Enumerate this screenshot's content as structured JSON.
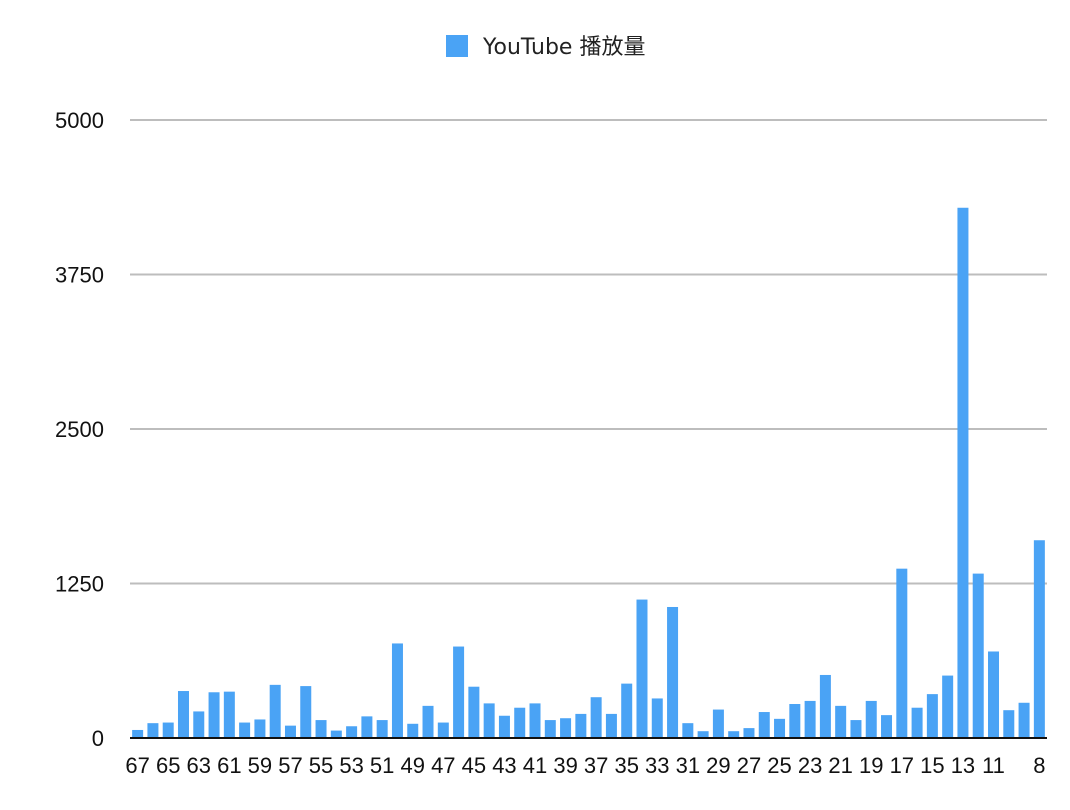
{
  "chart_data": {
    "type": "bar",
    "legend_position": "top-center",
    "grid": true,
    "series": [
      {
        "name": "YouTube 播放量",
        "color": "#4aa3f5",
        "values": [
          65,
          120,
          125,
          380,
          215,
          370,
          375,
          125,
          150,
          430,
          100,
          420,
          145,
          60,
          95,
          175,
          145,
          765,
          115,
          260,
          125,
          740,
          415,
          280,
          180,
          245,
          280,
          145,
          160,
          195,
          330,
          195,
          440,
          1120,
          320,
          1060,
          120,
          55,
          230,
          55,
          80,
          210,
          155,
          275,
          300,
          510,
          260,
          145,
          300,
          185,
          1370,
          245,
          355,
          505,
          4290,
          1330,
          700,
          225,
          285,
          1600
        ]
      }
    ],
    "categories": [
      "67",
      "66",
      "65",
      "64",
      "63",
      "62",
      "61",
      "60",
      "59",
      "58",
      "57",
      "56",
      "55",
      "54",
      "53",
      "52",
      "51",
      "50",
      "49",
      "48",
      "47",
      "46",
      "45",
      "44",
      "43",
      "42",
      "41",
      "40",
      "39",
      "38",
      "37",
      "36",
      "35",
      "34",
      "33",
      "32",
      "31",
      "30",
      "29",
      "28",
      "27",
      "26",
      "25",
      "24",
      "23",
      "22",
      "21",
      "20",
      "19",
      "18",
      "17",
      "16",
      "15",
      "14",
      "13",
      "12",
      "11",
      "10",
      "9",
      "8"
    ],
    "x_tick_labels": [
      "67",
      "65",
      "63",
      "61",
      "59",
      "57",
      "55",
      "53",
      "51",
      "49",
      "47",
      "45",
      "43",
      "41",
      "39",
      "37",
      "35",
      "33",
      "31",
      "29",
      "27",
      "25",
      "23",
      "21",
      "19",
      "17",
      "15",
      "13",
      "11",
      "8"
    ],
    "y_ticks": [
      "0",
      "1250",
      "2500",
      "3750",
      "5000"
    ],
    "ylim": [
      0,
      5000
    ]
  }
}
